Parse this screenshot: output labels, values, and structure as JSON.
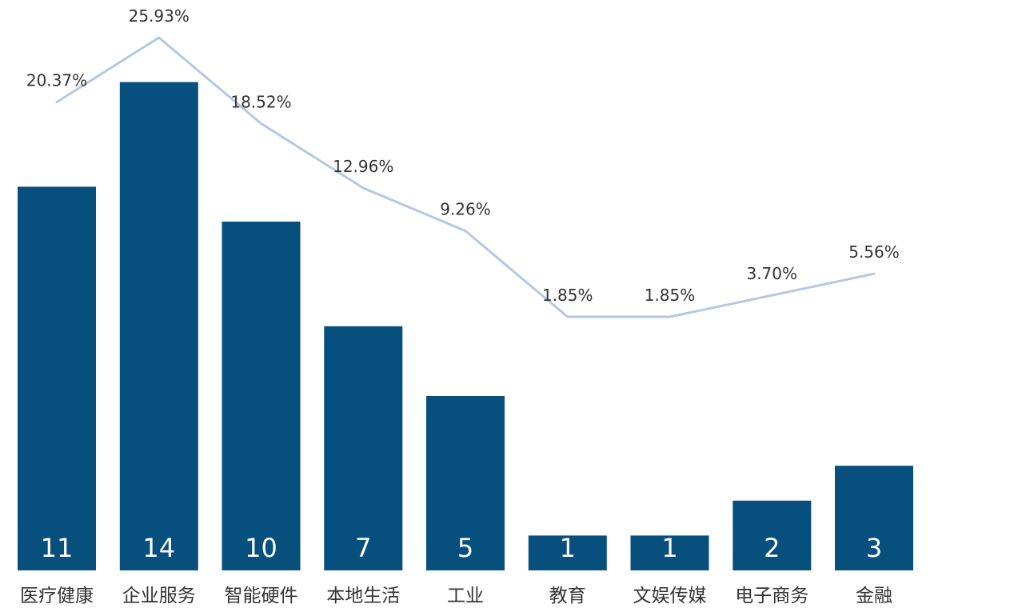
{
  "chart_data": {
    "type": "bar",
    "categories": [
      "医疗健康",
      "企业服务",
      "智能硬件",
      "本地生活",
      "工业",
      "教育",
      "文娱传媒",
      "电子商务",
      "金融"
    ],
    "series": [
      {
        "type": "bar",
        "values": [
          11,
          14,
          10,
          7,
          5,
          1,
          1,
          2,
          3
        ]
      },
      {
        "type": "line",
        "values": [
          20.37,
          25.93,
          18.52,
          12.96,
          9.26,
          1.85,
          1.85,
          3.7,
          5.56
        ],
        "labels": [
          "20.37%",
          "25.93%",
          "18.52%",
          "12.96%",
          "9.26%",
          "1.85%",
          "1.85%",
          "3.70%",
          "5.56%"
        ]
      }
    ],
    "colors": {
      "bar": "#074f7c",
      "line": "#b4c8e4"
    },
    "legend": "none",
    "grid": false
  }
}
